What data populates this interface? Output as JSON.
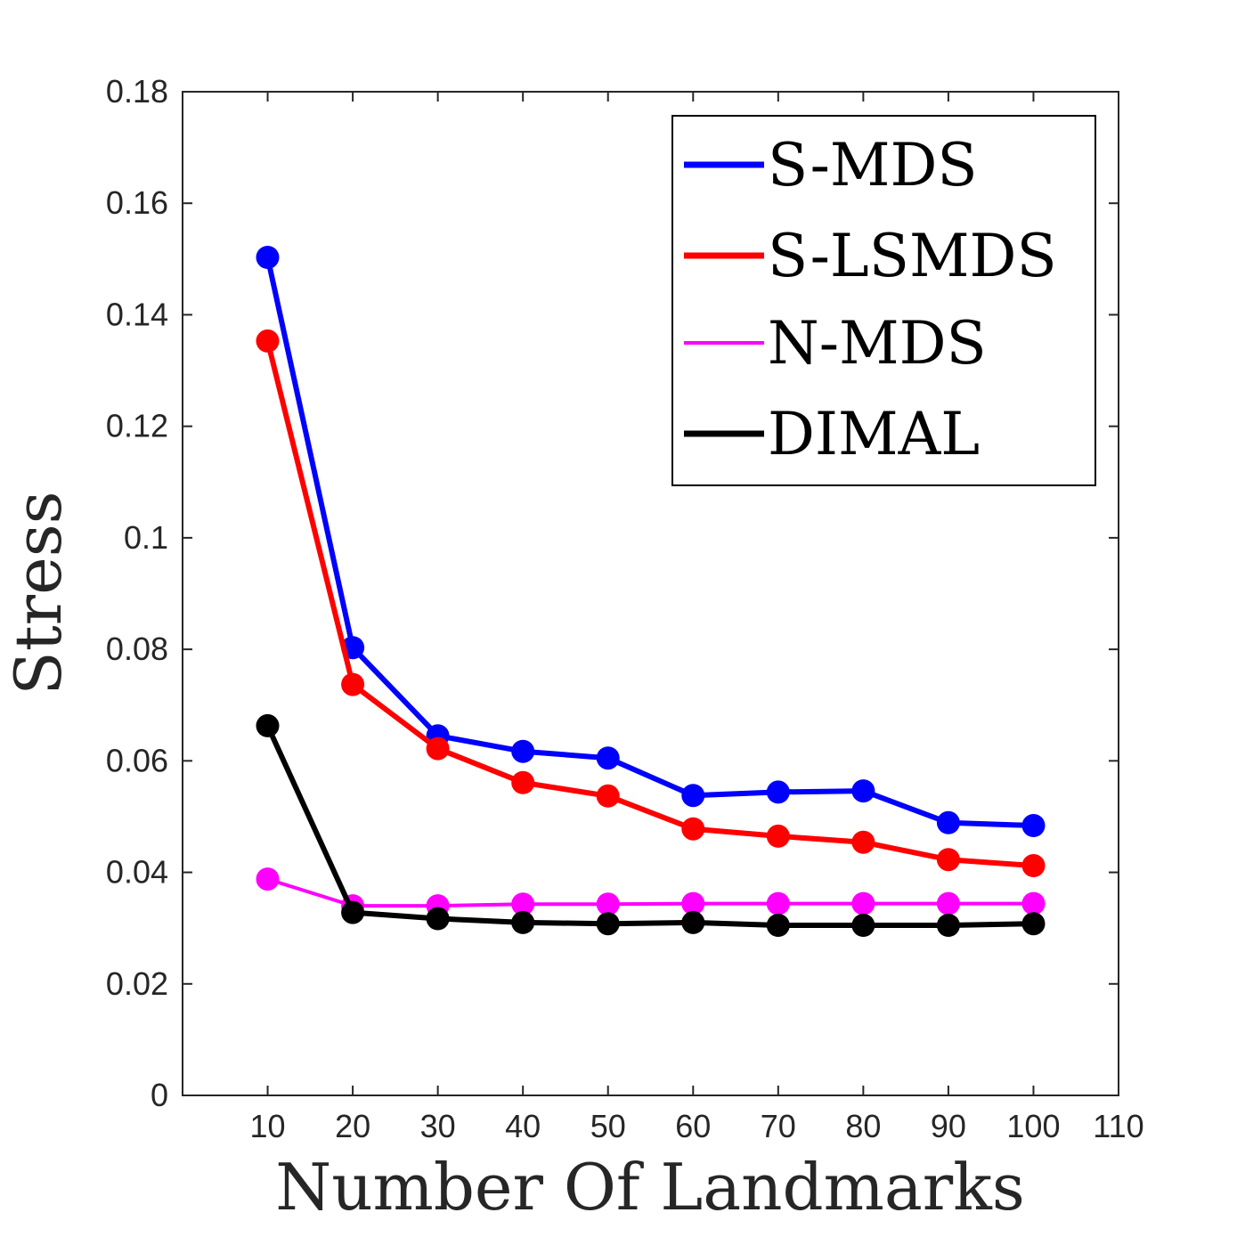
{
  "chart_data": {
    "type": "line",
    "title": "",
    "xlabel": "Number Of Landmarks",
    "ylabel": "Stress",
    "xlim": [
      0,
      110
    ],
    "ylim": [
      0,
      0.18
    ],
    "x": [
      10,
      20,
      30,
      40,
      50,
      60,
      70,
      80,
      90,
      100
    ],
    "xticks": [
      "10",
      "20",
      "30",
      "40",
      "50",
      "60",
      "70",
      "80",
      "90",
      "100",
      "110"
    ],
    "yticks": [
      "0",
      "0.02",
      "0.04",
      "0.06",
      "0.08",
      "0.1",
      "0.12",
      "0.14",
      "0.16",
      "0.18"
    ],
    "grid": false,
    "legend_position": "top-right",
    "series": [
      {
        "name": "S-MDS",
        "color": "#0000ff",
        "values": [
          0.1503,
          0.0803,
          0.0645,
          0.0617,
          0.0605,
          0.0538,
          0.0544,
          0.0546,
          0.0489,
          0.0484
        ]
      },
      {
        "name": "S-LSMDS",
        "color": "#ff0000",
        "values": [
          0.1353,
          0.0737,
          0.0622,
          0.0561,
          0.0537,
          0.0478,
          0.0465,
          0.0454,
          0.0423,
          0.0412
        ]
      },
      {
        "name": "N-MDS",
        "color": "#ff00ff",
        "values": [
          0.0388,
          0.034,
          0.034,
          0.0343,
          0.0343,
          0.0344,
          0.0344,
          0.0344,
          0.0344,
          0.0344
        ]
      },
      {
        "name": "DIMAL",
        "color": "#000000",
        "values": [
          0.0663,
          0.0328,
          0.0317,
          0.031,
          0.0308,
          0.031,
          0.0305,
          0.0305,
          0.0305,
          0.0308
        ]
      }
    ]
  }
}
